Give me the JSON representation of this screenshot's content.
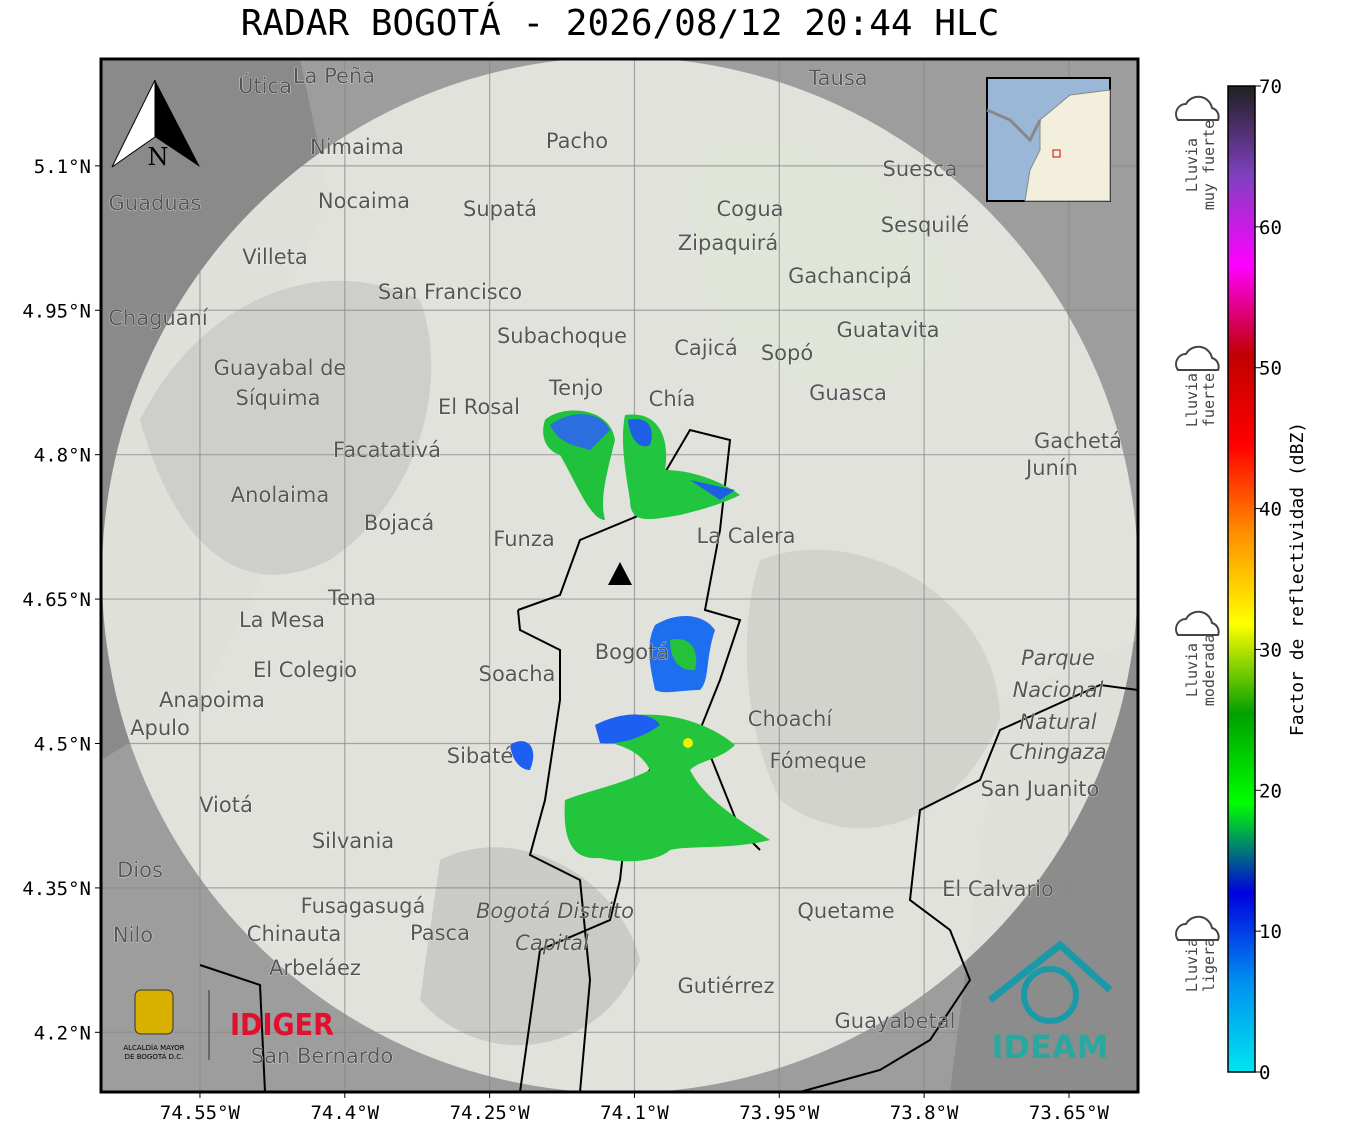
{
  "title": "RADAR BOGOTÁ - 2026/08/12 20:44 HLC",
  "map": {
    "xlim": [
      -74.6525,
      -73.5785
    ],
    "ylim": [
      4.138,
      5.211
    ],
    "xticks": [
      {
        "value": -74.55,
        "label": "74.55°W"
      },
      {
        "value": -74.4,
        "label": "74.4°W"
      },
      {
        "value": -74.25,
        "label": "74.25°W"
      },
      {
        "value": -74.1,
        "label": "74.1°W"
      },
      {
        "value": -73.95,
        "label": "73.95°W"
      },
      {
        "value": -73.8,
        "label": "73.8°W"
      },
      {
        "value": -73.65,
        "label": "73.65°W"
      }
    ],
    "yticks": [
      {
        "value": 5.1,
        "label": "5.1°N"
      },
      {
        "value": 4.95,
        "label": "4.95°N"
      },
      {
        "value": 4.8,
        "label": "4.8°N"
      },
      {
        "value": 4.65,
        "label": "4.65°N"
      },
      {
        "value": 4.5,
        "label": "4.5°N"
      },
      {
        "value": 4.35,
        "label": "4.35°N"
      },
      {
        "value": 4.2,
        "label": "4.2°N"
      }
    ],
    "grid": true,
    "north": "N",
    "places": [
      "La Peña",
      "Útica",
      "Tausa",
      "Pacho",
      "Nimaima",
      "Guaduas",
      "Nocaima",
      "Supatá",
      "Cogua",
      "Suesca",
      "Sesquilé",
      "Zipaquirá",
      "Villeta",
      "San Francisco",
      "Gachancipá",
      "Chaguaní",
      "Guatavita",
      "Subachoque",
      "Cajicá",
      "Sopó",
      "Guayabal de",
      "Síquima",
      "Tenjo",
      "Chía",
      "Guasca",
      "El Rosal",
      "Facatativá",
      "Gachetá",
      "Junín",
      "Anolaima",
      "Bojacá",
      "Funza",
      "La Calera",
      "Tena",
      "La Mesa",
      "Bogotá",
      "El Colegio",
      "Soacha",
      "Anapoima",
      "Apulo",
      "Choachí",
      "Sibaté",
      "Fómeque",
      "San Juanito",
      "Viotá",
      "Silvania",
      "Dios",
      "El Calvario",
      "Fusagasugá",
      "Bogotá Distrito",
      "Capital",
      "Quetame",
      "Nilo",
      "Chinauta",
      "Pasca",
      "Arbeláez",
      "Gutiérrez",
      "Guayabetal",
      "San Bernardo",
      "Parque",
      "Nacional",
      "Natural",
      "Chingaza"
    ]
  },
  "colorbar": {
    "label": "Factor de reflectividad (dBZ)",
    "lim": [
      0,
      70
    ],
    "ticks": [
      0,
      10,
      20,
      30,
      40,
      50,
      60,
      70
    ],
    "colors": [
      "#00e5f0",
      "#0090f0",
      "#0000e0",
      "#00ff00",
      "#00a000",
      "#ffff00",
      "#ff9000",
      "#ff0000",
      "#c00000",
      "#ff00ff",
      "#8040c0",
      "#202020"
    ]
  },
  "rain_levels": [
    [
      "Lluvia",
      "muy fuerte"
    ],
    [
      "Lluvia",
      "fuerte"
    ],
    [
      "Lluvia",
      "moderada"
    ],
    [
      "Lluvia",
      "ligera"
    ]
  ],
  "logos": {
    "idiger": "IDIGER",
    "ideam": "IDEAM",
    "alcaldia": [
      "ALCALDÍA MAYOR",
      "DE BOGOTÁ D.C."
    ]
  }
}
